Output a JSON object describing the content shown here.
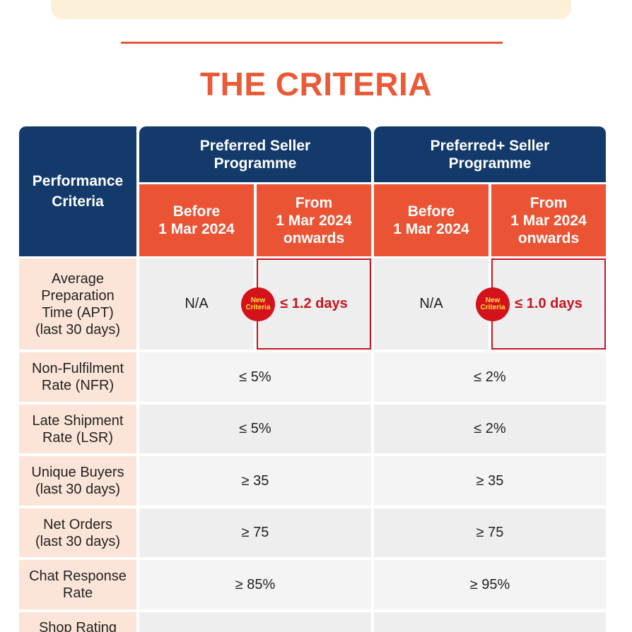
{
  "title": "THE CRITERIA",
  "header": {
    "performance_criteria": "Performance\nCriteria",
    "preferred": "Preferred Seller\nProgramme",
    "preferred_plus": "Preferred+ Seller\nProgramme",
    "before": "Before\n1 Mar 2024",
    "from": "From\n1 Mar 2024\nonwards"
  },
  "badge": "New\nCriteria",
  "rows": [
    {
      "label": "Average\nPreparation\nTime (APT)\n(last 30 days)",
      "pref_before": "N/A",
      "pref_from": "≤ 1.2 days",
      "plus_before": "N/A",
      "plus_from": "≤ 1.0 days"
    },
    {
      "label": "Non-Fulfilment\nRate (NFR)",
      "pref": "≤ 5%",
      "plus": "≤ 2%"
    },
    {
      "label": "Late Shipment\nRate (LSR)",
      "pref": "≤ 5%",
      "plus": "≤ 2%"
    },
    {
      "label": "Unique Buyers\n(last 30 days)",
      "pref": "≥ 35",
      "plus": "≥ 35"
    },
    {
      "label": "Net Orders\n(last 30 days)",
      "pref": "≥ 75",
      "plus": "≥ 75"
    },
    {
      "label": "Chat Response\nRate",
      "pref": "≥ 85%",
      "plus": "≥ 95%"
    },
    {
      "label": "Shop Rating",
      "pref": "",
      "plus": ""
    }
  ],
  "colors": {
    "navy": "#133a6b",
    "orange": "#ea5434",
    "accent_red": "#c8141e"
  }
}
